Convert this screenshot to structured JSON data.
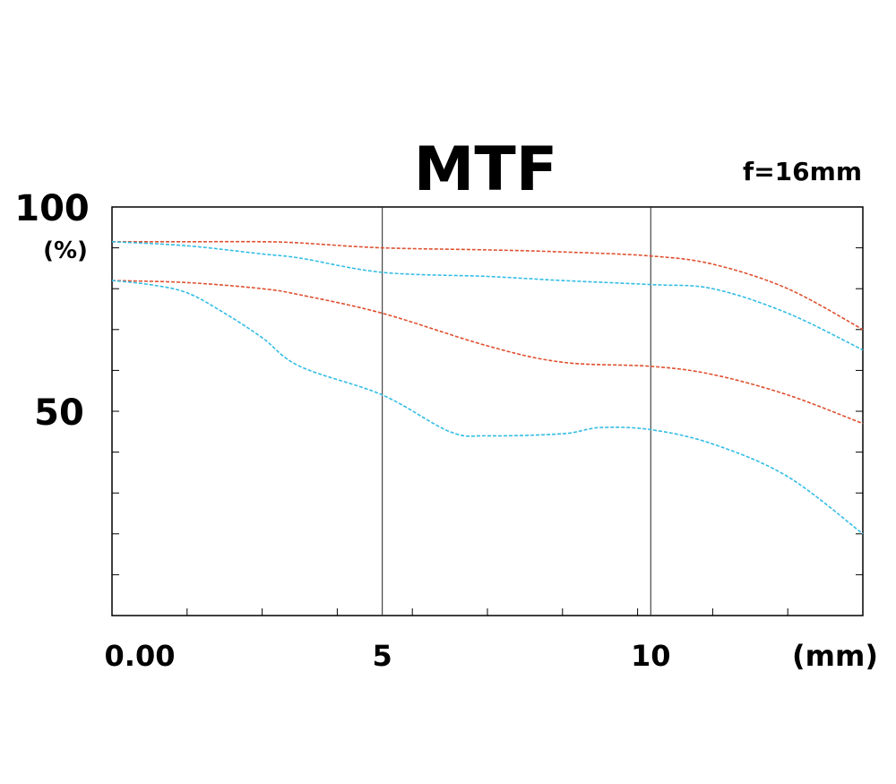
{
  "chart_data": {
    "type": "line",
    "title": "MTF",
    "subtitle": "f=16mm",
    "xlabel": "(mm)",
    "ylabel": "(%)",
    "xlim": [
      0,
      20
    ],
    "ylim": [
      0,
      100
    ],
    "x_ticks": [
      {
        "value": 0,
        "label": "0.00"
      },
      {
        "value": 7.2,
        "label": "5"
      },
      {
        "value": 14.35,
        "label": "10"
      }
    ],
    "y_ticks": [
      {
        "value": 100,
        "label": "100"
      },
      {
        "value": 50,
        "label": "50"
      }
    ],
    "grid": false,
    "colors": {
      "red": "#e05030",
      "blue": "#33bde6",
      "axis": "#000000"
    },
    "series": [
      {
        "color": "red",
        "x": [
          0,
          2,
          4,
          5,
          7.2,
          10,
          12,
          14.35,
          16,
          18,
          20
        ],
        "y": [
          91.5,
          91.5,
          91.5,
          91.2,
          90,
          89.5,
          89,
          88,
          86,
          80,
          70
        ]
      },
      {
        "color": "blue",
        "x": [
          0,
          2,
          4,
          5,
          7.2,
          10,
          12,
          14.35,
          16,
          18,
          20
        ],
        "y": [
          91.5,
          90.5,
          88.5,
          87.5,
          84,
          83,
          82,
          81,
          80,
          74,
          65
        ]
      },
      {
        "color": "red",
        "x": [
          0,
          2,
          4,
          5,
          7.2,
          10,
          12,
          14.35,
          16,
          18,
          20
        ],
        "y": [
          82,
          81.5,
          80,
          78.5,
          74,
          66,
          62,
          61,
          59,
          54,
          47
        ]
      },
      {
        "color": "blue",
        "x": [
          0,
          1,
          2,
          3,
          4,
          5,
          7.2,
          9,
          10,
          12,
          13,
          14.35,
          16,
          18,
          20
        ],
        "y": [
          82,
          81,
          79,
          74,
          68,
          61,
          54,
          45,
          44,
          44.5,
          46,
          45.5,
          42,
          34,
          20
        ]
      }
    ]
  }
}
